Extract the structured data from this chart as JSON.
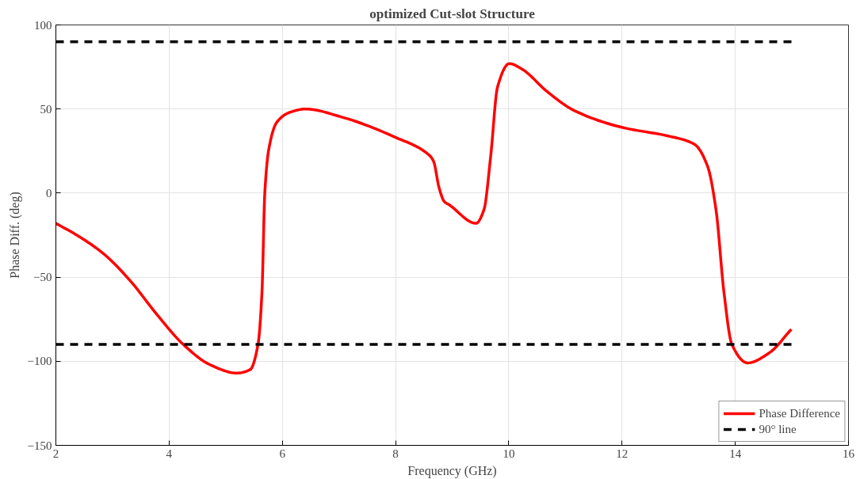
{
  "chart_data": {
    "type": "line",
    "title": "optimized Cut-slot Structure",
    "xlabel": "Frequency (GHz)",
    "ylabel": "Phase Diff. (deg)",
    "xlim": [
      2,
      16
    ],
    "xticks": [
      2,
      4,
      6,
      8,
      10,
      12,
      14,
      16
    ],
    "ylim": [
      -150,
      100
    ],
    "yticks": [
      -150,
      -100,
      -50,
      0,
      50,
      100
    ],
    "grid": true,
    "legend": "bottom right",
    "marker": "none",
    "series": [
      {
        "name": "Phase Difference",
        "color": "#ff0000",
        "line_style": "solid",
        "x": [
          2,
          2.37,
          2.84,
          3.31,
          3.78,
          4.25,
          4.72,
          5.19,
          5.43,
          5.57,
          5.64,
          5.69,
          5.76,
          5.9,
          6.13,
          6.41,
          7.07,
          8.01,
          8.58,
          8.67,
          8.77,
          8.86,
          8.95,
          9.42,
          9.56,
          9.68,
          9.8,
          10.01,
          10.22,
          10.69,
          11.16,
          12.01,
          12.81,
          13.28,
          13.51,
          13.66,
          13.8,
          13.94,
          14.22,
          14.6,
          14.99
        ],
        "values": [
          -18,
          -25,
          -36,
          -52,
          -72,
          -90,
          -102,
          -107,
          -105,
          -90,
          -59,
          0,
          26,
          42,
          48,
          50,
          45,
          33,
          23,
          19,
          3,
          -5,
          -7,
          -18,
          -10,
          22,
          63,
          77,
          74,
          60,
          49,
          39,
          34,
          29,
          16,
          -10,
          -59,
          -90,
          -101,
          -95,
          -81
        ]
      },
      {
        "name": "90° line",
        "color": "#000000",
        "line_style": "dashed",
        "x": [
          2,
          15
        ],
        "values": [
          90,
          90
        ]
      },
      {
        "color": "#000000",
        "line_style": "dashed",
        "x": [
          2,
          15
        ],
        "values": [
          -90,
          -90
        ]
      }
    ]
  }
}
